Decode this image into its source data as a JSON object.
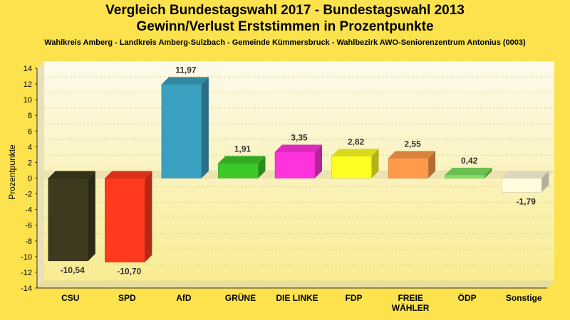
{
  "chart_data": {
    "type": "bar",
    "title": "Vergleich Bundestagswahl 2017 - Bundestagswahl 2013",
    "subtitle": "Gewinn/Verlust Erststimmen in Prozentpunkte",
    "caption": "Wahlkreis Amberg - Landkreis Amberg-Sulzbach - Gemeinde Kümmersbruck - Wahlbezirk AWO-Seniorenzentrum Antonius (0003)",
    "ylabel": "Prozentpunkte",
    "xlabel": "",
    "ylim": [
      -14,
      14
    ],
    "yticks": [
      14,
      12,
      10,
      8,
      6,
      4,
      2,
      0,
      -2,
      -4,
      -6,
      -8,
      -10,
      -12,
      -14
    ],
    "categories": [
      [
        "CSU"
      ],
      [
        "SPD"
      ],
      [
        "AfD"
      ],
      [
        "GRÜNE"
      ],
      [
        "DIE LINKE"
      ],
      [
        "FDP"
      ],
      [
        "FREIE",
        "WÄHLER"
      ],
      [
        "ÖDP"
      ],
      [
        "Sonstige"
      ]
    ],
    "values": [
      -10.54,
      -10.7,
      11.97,
      1.91,
      3.35,
      2.82,
      2.55,
      0.42,
      -1.79
    ],
    "value_labels": [
      "-10,54",
      "-10,70",
      "11,97",
      "1,91",
      "3,35",
      "2,82",
      "2,55",
      "0,42",
      "-1,79"
    ],
    "colors": [
      "#3d3a1f",
      "#ff3a1e",
      "#3aa0c0",
      "#3cc828",
      "#ff33dd",
      "#ffff22",
      "#ff9a4a",
      "#80e060",
      "#fffcdd"
    ],
    "grid": true
  }
}
